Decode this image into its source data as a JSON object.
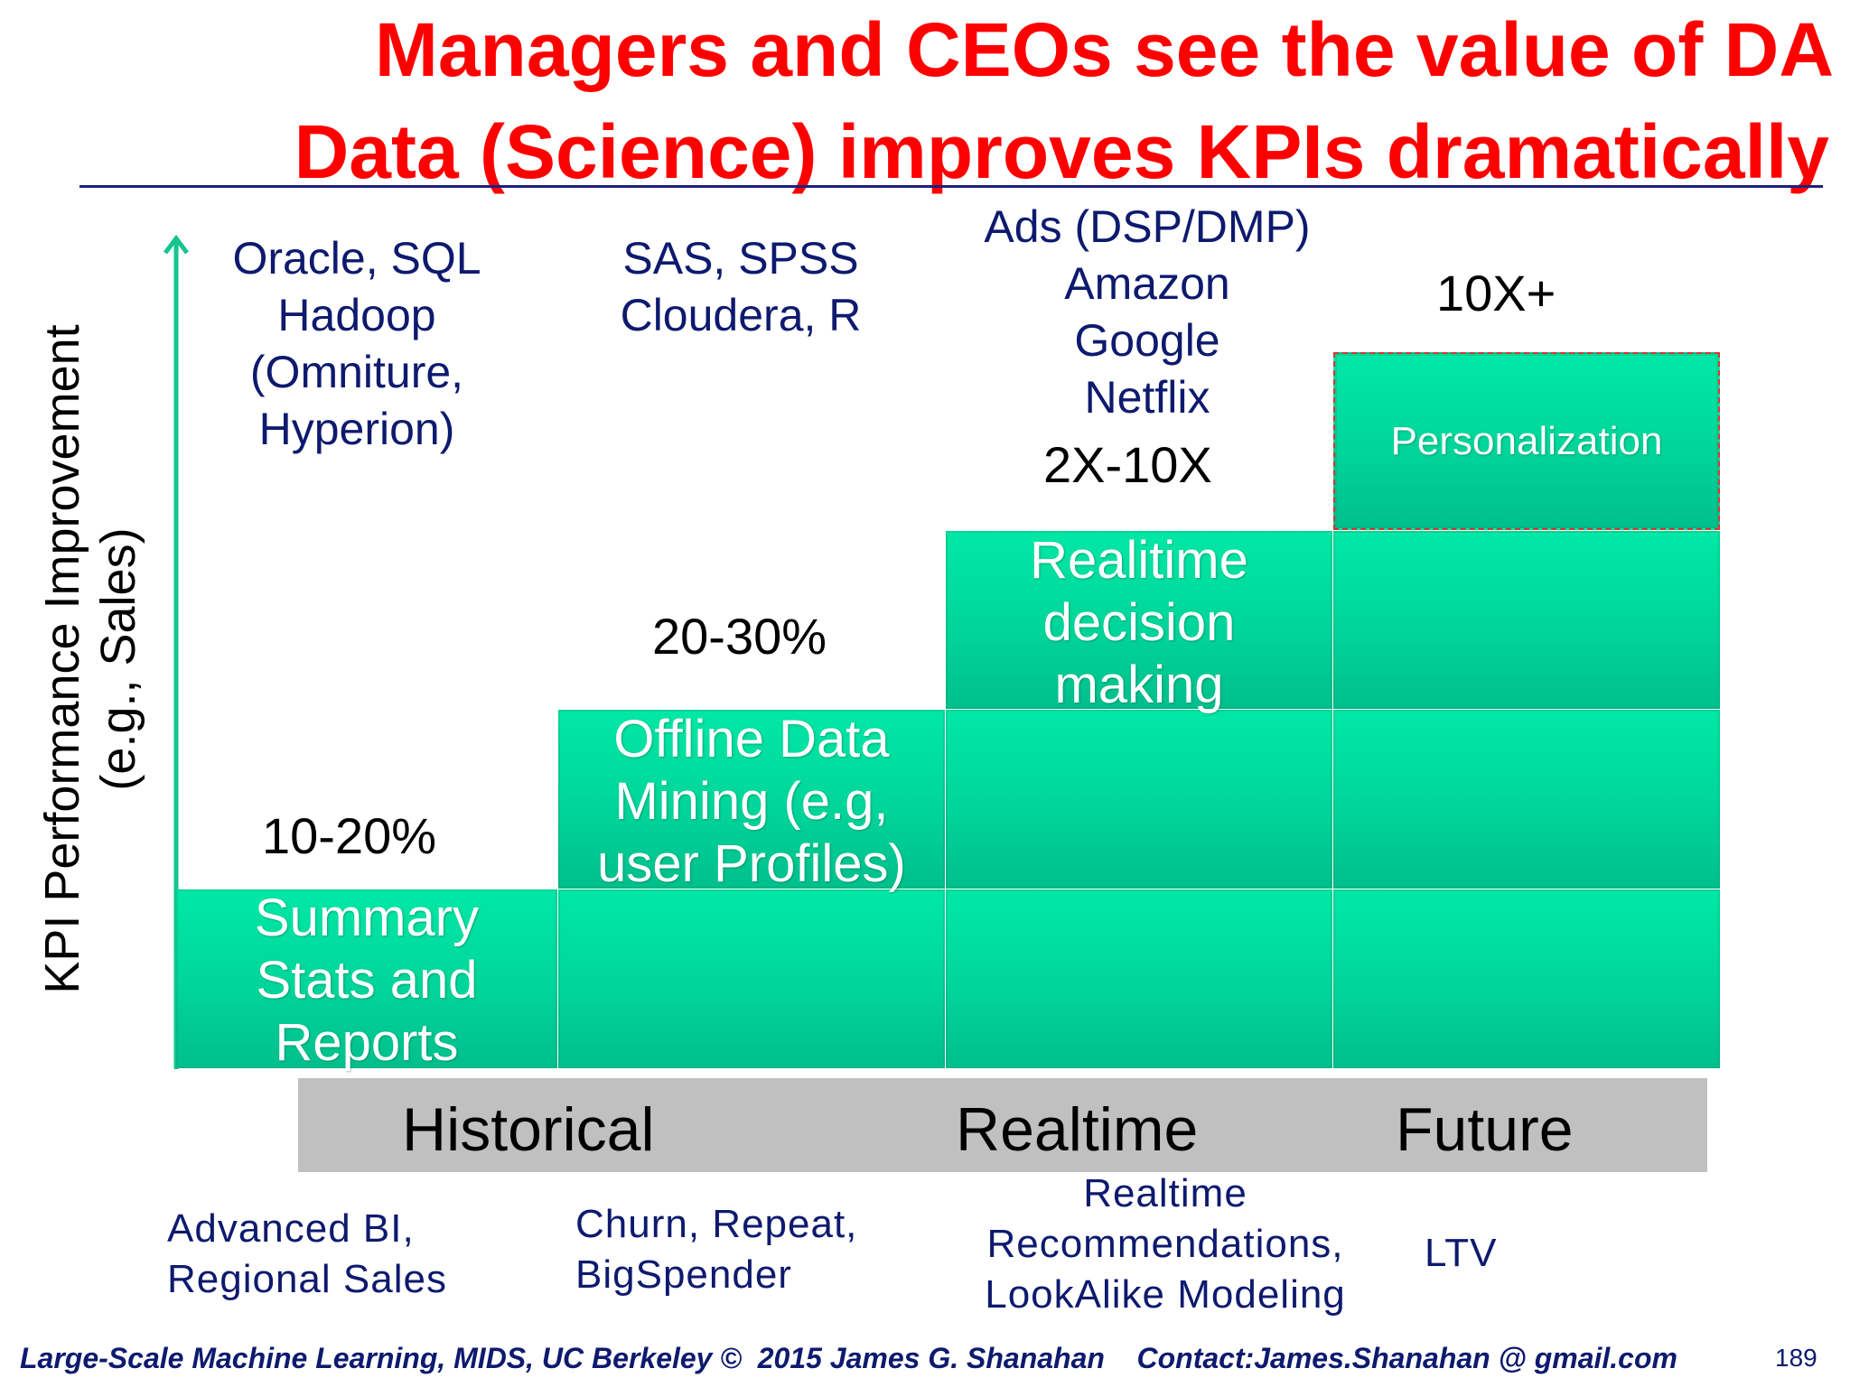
{
  "title": {
    "line1": "Managers and CEOs see the value of DA",
    "line2": "Data (Science) improves KPIs dramatically"
  },
  "y_axis_label": {
    "line1": "KPI Performance Improvement",
    "line2": "(e.g., Sales)"
  },
  "tools": {
    "col1": [
      "Oracle, SQL",
      "Hadoop",
      "(Omniture,",
      "Hyperion)"
    ],
    "col2": [
      "SAS, SPSS",
      "Cloudera, R"
    ],
    "col3": [
      "Ads (DSP/DMP)",
      "Amazon",
      "Google",
      "Netflix"
    ]
  },
  "improvements": {
    "col1": "10-20%",
    "col2": "20-30%",
    "col3": "2X-10X",
    "col4": "10X+"
  },
  "steps": [
    {
      "lines": [
        "Summary",
        "Stats and",
        "Reports"
      ]
    },
    {
      "lines": [
        "Offline Data",
        "Mining (e.g,",
        "user Profiles)"
      ]
    },
    {
      "lines": [
        "Realitime",
        "decision",
        "making"
      ]
    },
    {
      "lines": [
        "Personalization"
      ]
    }
  ],
  "timeline": {
    "historical": "Historical",
    "realtime": "Realtime",
    "future": "Future"
  },
  "applications": {
    "col1": [
      "Advanced BI,",
      "Regional Sales"
    ],
    "col2": [
      "Churn, Repeat,",
      "BigSpender"
    ],
    "col3": [
      "Realtime",
      "Recommendations,",
      "LookAlike Modeling"
    ],
    "col4": [
      "LTV"
    ]
  },
  "footer": {
    "text": "Large-Scale Machine Learning, MIDS, UC Berkeley ©  2015 James G. Shanahan    Contact:James.Shanahan @ gmail.com",
    "page_number": "189"
  },
  "colors": {
    "title": "#ff0000",
    "block": "#00d89c",
    "navy_text": "#0d1a6e",
    "timeline_bar": "#c0c0c0",
    "personalization_border": "#e03030"
  }
}
